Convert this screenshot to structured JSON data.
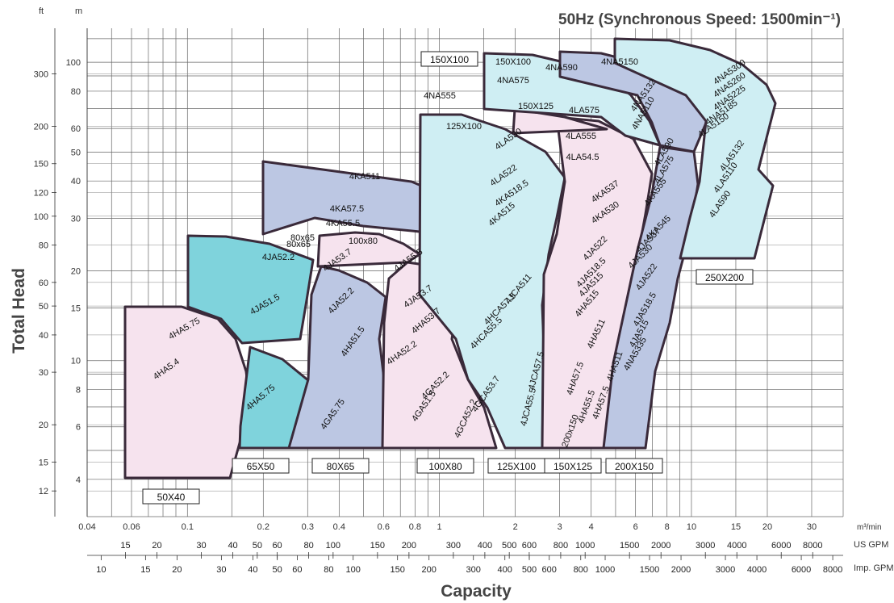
{
  "chart_data": {
    "type": "area",
    "title": "50Hz (Synchronous Speed: 1500min⁻¹)",
    "xlabel": "Capacity",
    "ylabel": "Total Head",
    "x_scale": "log",
    "y_scale": "log",
    "xlim": [
      0.04,
      40
    ],
    "ylim": [
      3,
      130
    ],
    "x_unit": "m³/min",
    "y_unit_left": "ft",
    "y_unit_right": "m",
    "x_ticks": [
      "0.04",
      "0.06",
      "0.1",
      "0.2",
      "0.3",
      "0.4",
      "0.6",
      "0.8",
      "1",
      "2",
      "3",
      "4",
      "6",
      "8",
      "10",
      "15",
      "20",
      "30"
    ],
    "gpm_ticks": [
      "15",
      "20",
      "30",
      "40",
      "50",
      "60",
      "80",
      "100",
      "150",
      "200",
      "300",
      "400",
      "500",
      "600",
      "800",
      "1000",
      "1500",
      "2000",
      "3000",
      "4000",
      "6000",
      "8000"
    ],
    "gpm_label": "US GPM",
    "imp_ticks": [
      "10",
      "15",
      "20",
      "30",
      "40",
      "50",
      "60",
      "80",
      "100",
      "150",
      "200",
      "300",
      "400",
      "500",
      "600",
      "800",
      "1000",
      "1500",
      "2000",
      "3000",
      "4000",
      "6000",
      "8000"
    ],
    "imp_label": "Imp. GPM",
    "m_ticks": [
      "4",
      "6",
      "8",
      "10",
      "15",
      "20",
      "30",
      "40",
      "50",
      "60",
      "80",
      "100"
    ],
    "ft_ticks": [
      "12",
      "15",
      "20",
      "30",
      "40",
      "50",
      "60",
      "80",
      "100",
      "120",
      "150",
      "200",
      "300"
    ],
    "series": [
      {
        "name": "50X40",
        "color": "#f6e3ee"
      },
      {
        "name": "65X50",
        "color": "#7fd3dc"
      },
      {
        "name": "80X65",
        "color": "#bcc7e3"
      },
      {
        "name": "100X80",
        "color": "#f6e3ee"
      },
      {
        "name": "125X100",
        "color": "#cfeef3"
      },
      {
        "name": "150X125",
        "color": "#f6e3ee"
      },
      {
        "name": "200X150",
        "color": "#bcc7e3"
      },
      {
        "name": "150X100",
        "color": "#cfeef3"
      },
      {
        "name": "250X200",
        "color": "#cfeef3"
      }
    ],
    "model_labels": [
      "4HA5.75",
      "4HA5.4",
      "4HA5.75",
      "4JA52.2",
      "4JA51.5",
      "80x65",
      "4KA511",
      "4KA57.5",
      "4KA55.5",
      "80x65",
      "4JA53.7",
      "4JA52.2",
      "4HA51.5",
      "4GA5.75",
      "100x80",
      "4JA55.5",
      "4JA53.7",
      "4HA53.7",
      "4HA52.2",
      "4GA52.2",
      "4GA51.5",
      "125X100",
      "4LA530",
      "4LA522",
      "4KA518.5",
      "4KA515",
      "4JCA511",
      "4HCA57.5",
      "4HCA55.5",
      "4GCA53.7",
      "4GCA52.2",
      "4JCA57.5",
      "4JCA55.5",
      "150X100",
      "4NA590",
      "4NA575",
      "4NA555",
      "150X125",
      "4LA575",
      "4LA555",
      "4LA54.5",
      "4KA537",
      "4KA530",
      "4JA522",
      "4JA518.5",
      "4JA515",
      "4HA515",
      "4HA511",
      "4HA57.5",
      "4HA55.5",
      "200x150",
      "4HA511",
      "4HA57.5",
      "4NA5150",
      "4NA5132",
      "4NA5110",
      "4LA590",
      "4LA575",
      "4KA555",
      "4KA545",
      "4JA537",
      "4JA530",
      "4JA522",
      "4JA518.5",
      "4JA515",
      "4NA5335",
      "4NA5300",
      "4NA5260",
      "4NA5225",
      "4NA5185",
      "4LA5150",
      "4LA5132",
      "4LA5110",
      "4LA590"
    ]
  }
}
